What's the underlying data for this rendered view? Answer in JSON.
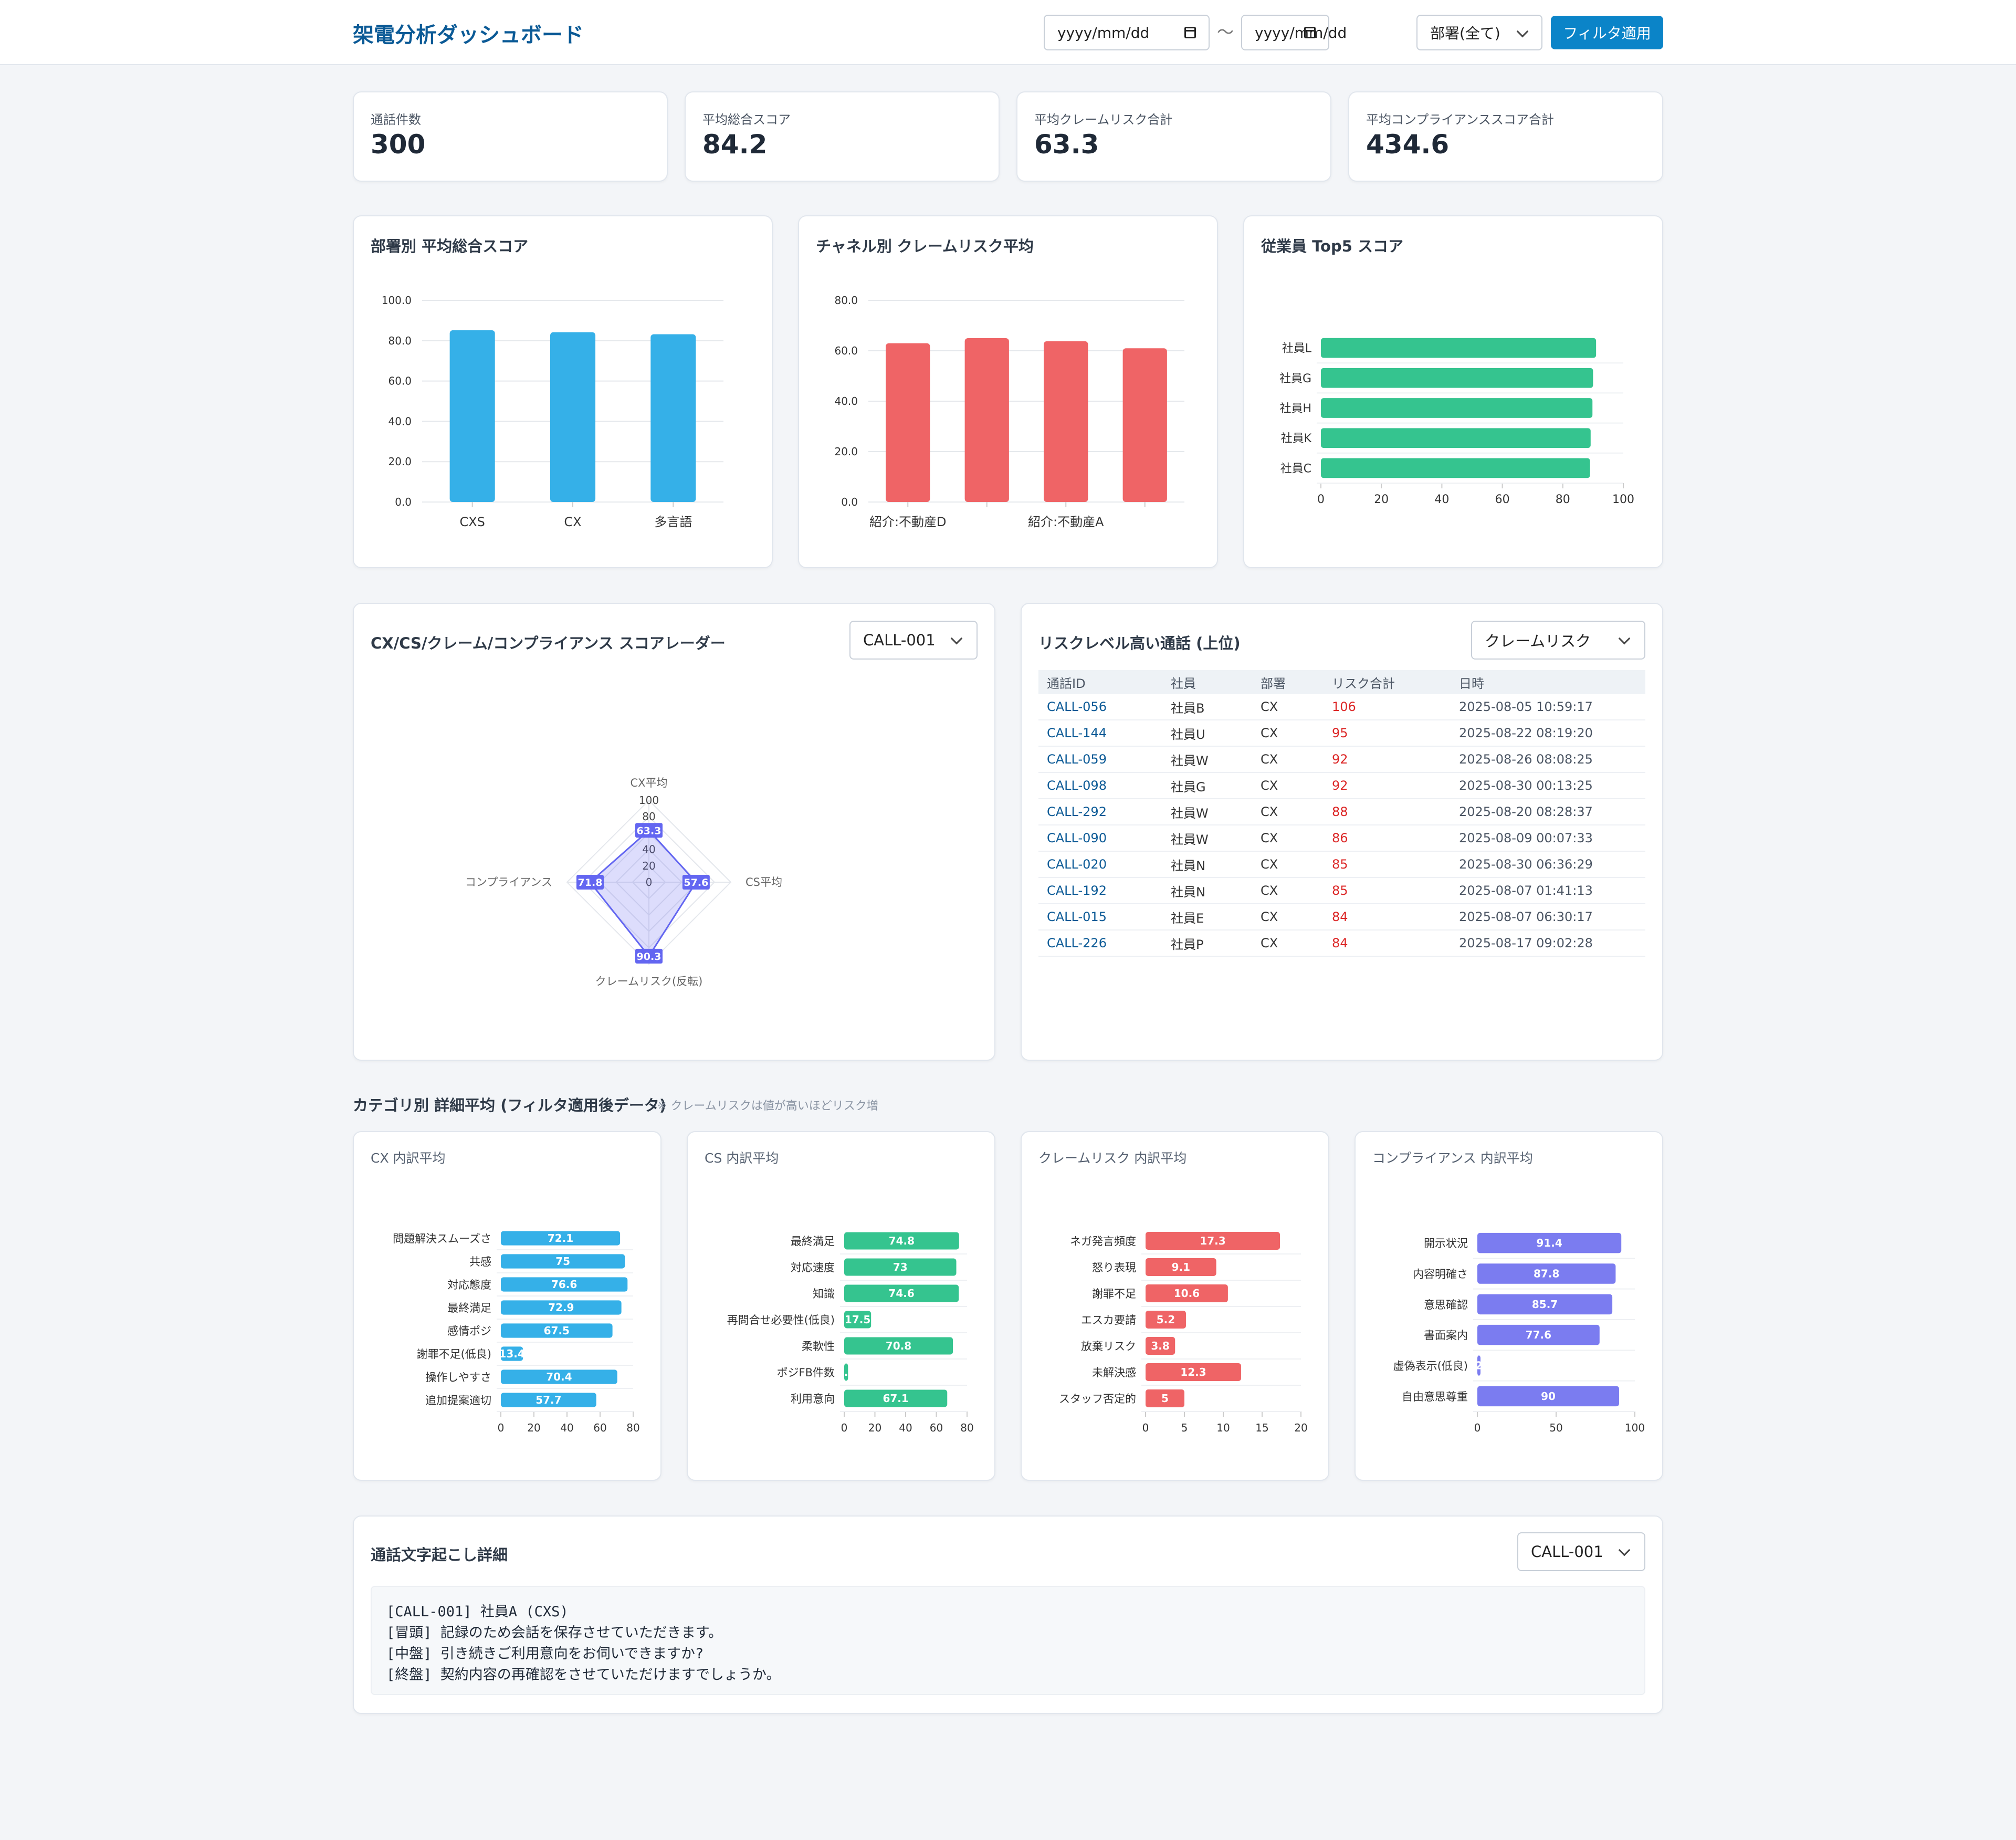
{
  "header": {
    "title": "架電分析ダッシュボード",
    "date_from_placeholder": "yyyy/mm/dd",
    "date_to_placeholder": "yyyy/mm/dd",
    "range_separator": "〜",
    "department_select": "部署(全て)",
    "apply_button": "フィルタ適用",
    "accent_color": "#0b84c8"
  },
  "kpis": [
    {
      "label": "通話件数",
      "value": "300"
    },
    {
      "label": "平均総合スコア",
      "value": "84.2"
    },
    {
      "label": "平均クレームリスク合計",
      "value": "63.3"
    },
    {
      "label": "平均コンプライアンススコア合計",
      "value": "434.6"
    }
  ],
  "charts_row_titles": {
    "dept": "部署別 平均総合スコア",
    "channel": "チャネル別 クレームリスク平均",
    "top5": "従業員 Top5 スコア"
  },
  "radar_panel": {
    "title": "CX/CS/クレーム/コンプライアンス スコアレーダー",
    "select": "CALL-001"
  },
  "risk_panel": {
    "title": "リスクレベル高い通話 (上位)",
    "select": "クレームリスク",
    "columns": [
      "通話ID",
      "社員",
      "部署",
      "リスク合計",
      "日時"
    ],
    "rows": [
      [
        "CALL-056",
        "社員B",
        "CX",
        "106",
        "2025-08-05 10:59:17"
      ],
      [
        "CALL-144",
        "社員U",
        "CX",
        "95",
        "2025-08-22 08:19:20"
      ],
      [
        "CALL-059",
        "社員W",
        "CX",
        "92",
        "2025-08-26 08:08:25"
      ],
      [
        "CALL-098",
        "社員G",
        "CX",
        "92",
        "2025-08-30 00:13:25"
      ],
      [
        "CALL-292",
        "社員W",
        "CX",
        "88",
        "2025-08-20 08:28:37"
      ],
      [
        "CALL-090",
        "社員W",
        "CX",
        "86",
        "2025-08-09 00:07:33"
      ],
      [
        "CALL-020",
        "社員N",
        "CX",
        "85",
        "2025-08-30 06:36:29"
      ],
      [
        "CALL-192",
        "社員N",
        "CX",
        "85",
        "2025-08-07 01:41:13"
      ],
      [
        "CALL-015",
        "社員E",
        "CX",
        "84",
        "2025-08-07 06:30:17"
      ],
      [
        "CALL-226",
        "社員P",
        "CX",
        "84",
        "2025-08-17 09:02:28"
      ]
    ]
  },
  "category_section": {
    "heading": "カテゴリ別 詳細平均 (フィルタ適用後データ)",
    "note": "※ クレームリスクは値が高いほどリスク増",
    "titles": {
      "cx": "CX 内訳平均",
      "cs": "CS 内訳平均",
      "claim": "クレームリスク 内訳平均",
      "compliance": "コンプライアンス 内訳平均"
    }
  },
  "transcript_panel": {
    "title": "通話文字起こし詳細",
    "select": "CALL-001",
    "lines": [
      "[CALL-001] 社員A (CXS)",
      "[冒頭] 記録のため会話を保存させていただきます。",
      "[中盤] 引き続きご利用意向をお伺いできますか?",
      "[終盤] 契約内容の再確認をさせていただけますでしょうか。"
    ]
  },
  "chart_data": [
    {
      "id": "dept",
      "type": "bar",
      "color": "#35b0e8",
      "categories": [
        "CXS",
        "CX",
        "多言語"
      ],
      "values": [
        85.2,
        84.2,
        83.2
      ],
      "ylim": [
        0,
        100
      ],
      "yticks": [
        "0.0",
        "20.0",
        "40.0",
        "60.0",
        "80.0",
        "100.0"
      ]
    },
    {
      "id": "channel",
      "type": "bar",
      "color": "#ef6466",
      "categories": [
        "紹介:不動産D",
        "",
        "紹介:不動産A",
        ""
      ],
      "values": [
        63.0,
        65.0,
        63.8,
        61.0
      ],
      "ylim": [
        0,
        80
      ],
      "yticks": [
        "0.0",
        "20.0",
        "40.0",
        "60.0",
        "80.0"
      ]
    },
    {
      "id": "top5",
      "type": "bar",
      "orientation": "horizontal",
      "color": "#35c48f",
      "categories": [
        "社員L",
        "社員G",
        "社員H",
        "社員K",
        "社員C"
      ],
      "values": [
        91.0,
        90.0,
        89.8,
        89.2,
        89.0
      ],
      "xlim": [
        0,
        100
      ],
      "xticks": [
        "0",
        "20",
        "40",
        "60",
        "80",
        "100"
      ]
    },
    {
      "id": "radar",
      "type": "radar",
      "color": "#6366f1",
      "axes": [
        "CX平均",
        "CS平均",
        "クレームリスク(反転)",
        "コンプライアンス"
      ],
      "values": [
        63.3,
        57.6,
        90.3,
        71.8
      ],
      "rlim": [
        0,
        100
      ],
      "rticks": [
        "0",
        "20",
        "40",
        "60",
        "80",
        "100"
      ]
    },
    {
      "id": "cx",
      "type": "bar",
      "orientation": "horizontal",
      "color": "#35b0e8",
      "categories": [
        "問題解決スムーズさ",
        "共感",
        "対応態度",
        "最終満足",
        "感情ポジ",
        "謝罪不足(低良)",
        "操作しやすさ",
        "追加提案適切"
      ],
      "values": [
        72.1,
        75,
        76.6,
        72.9,
        67.5,
        13.4,
        70.4,
        57.7
      ],
      "xlim": [
        0,
        80
      ],
      "xticks": [
        "0",
        "20",
        "40",
        "60",
        "80"
      ]
    },
    {
      "id": "cs",
      "type": "bar",
      "orientation": "horizontal",
      "color": "#35c48f",
      "categories": [
        "最終満足",
        "対応速度",
        "知識",
        "再問合せ必要性(低良)",
        "柔軟性",
        "ポジFB件数",
        "利用意向"
      ],
      "values": [
        74.8,
        73,
        74.6,
        17.5,
        70.8,
        2.5,
        67.1
      ],
      "labels": [
        "74.8",
        "73",
        "74.6",
        "17.5",
        "70.8",
        "2.5",
        "67.1"
      ],
      "xlim": [
        0,
        80
      ],
      "xticks": [
        "0",
        "20",
        "40",
        "60",
        "80"
      ]
    },
    {
      "id": "claim",
      "type": "bar",
      "orientation": "horizontal",
      "color": "#ef6466",
      "categories": [
        "ネガ発言頻度",
        "怒り表現",
        "謝罪不足",
        "エスカ要請",
        "放棄リスク",
        "未解決感",
        "スタッフ否定的"
      ],
      "values": [
        17.3,
        9.1,
        10.6,
        5.2,
        3.8,
        12.3,
        5
      ],
      "xlim": [
        0,
        20
      ],
      "xticks": [
        "0",
        "5",
        "10",
        "15",
        "20"
      ]
    },
    {
      "id": "compliance",
      "type": "bar",
      "orientation": "horizontal",
      "color": "#7b7cf0",
      "categories": [
        "開示状況",
        "内容明確さ",
        "意思確認",
        "書面案内",
        "虚偽表示(低良)",
        "自由意思尊重"
      ],
      "values": [
        91.4,
        87.8,
        85.7,
        77.6,
        2,
        90
      ],
      "labels": [
        "91.4",
        "87.8",
        "85.7",
        "77.6",
        "2",
        "90"
      ],
      "xlim": [
        0,
        100
      ],
      "xticks": [
        "0",
        "50",
        "100"
      ]
    }
  ]
}
